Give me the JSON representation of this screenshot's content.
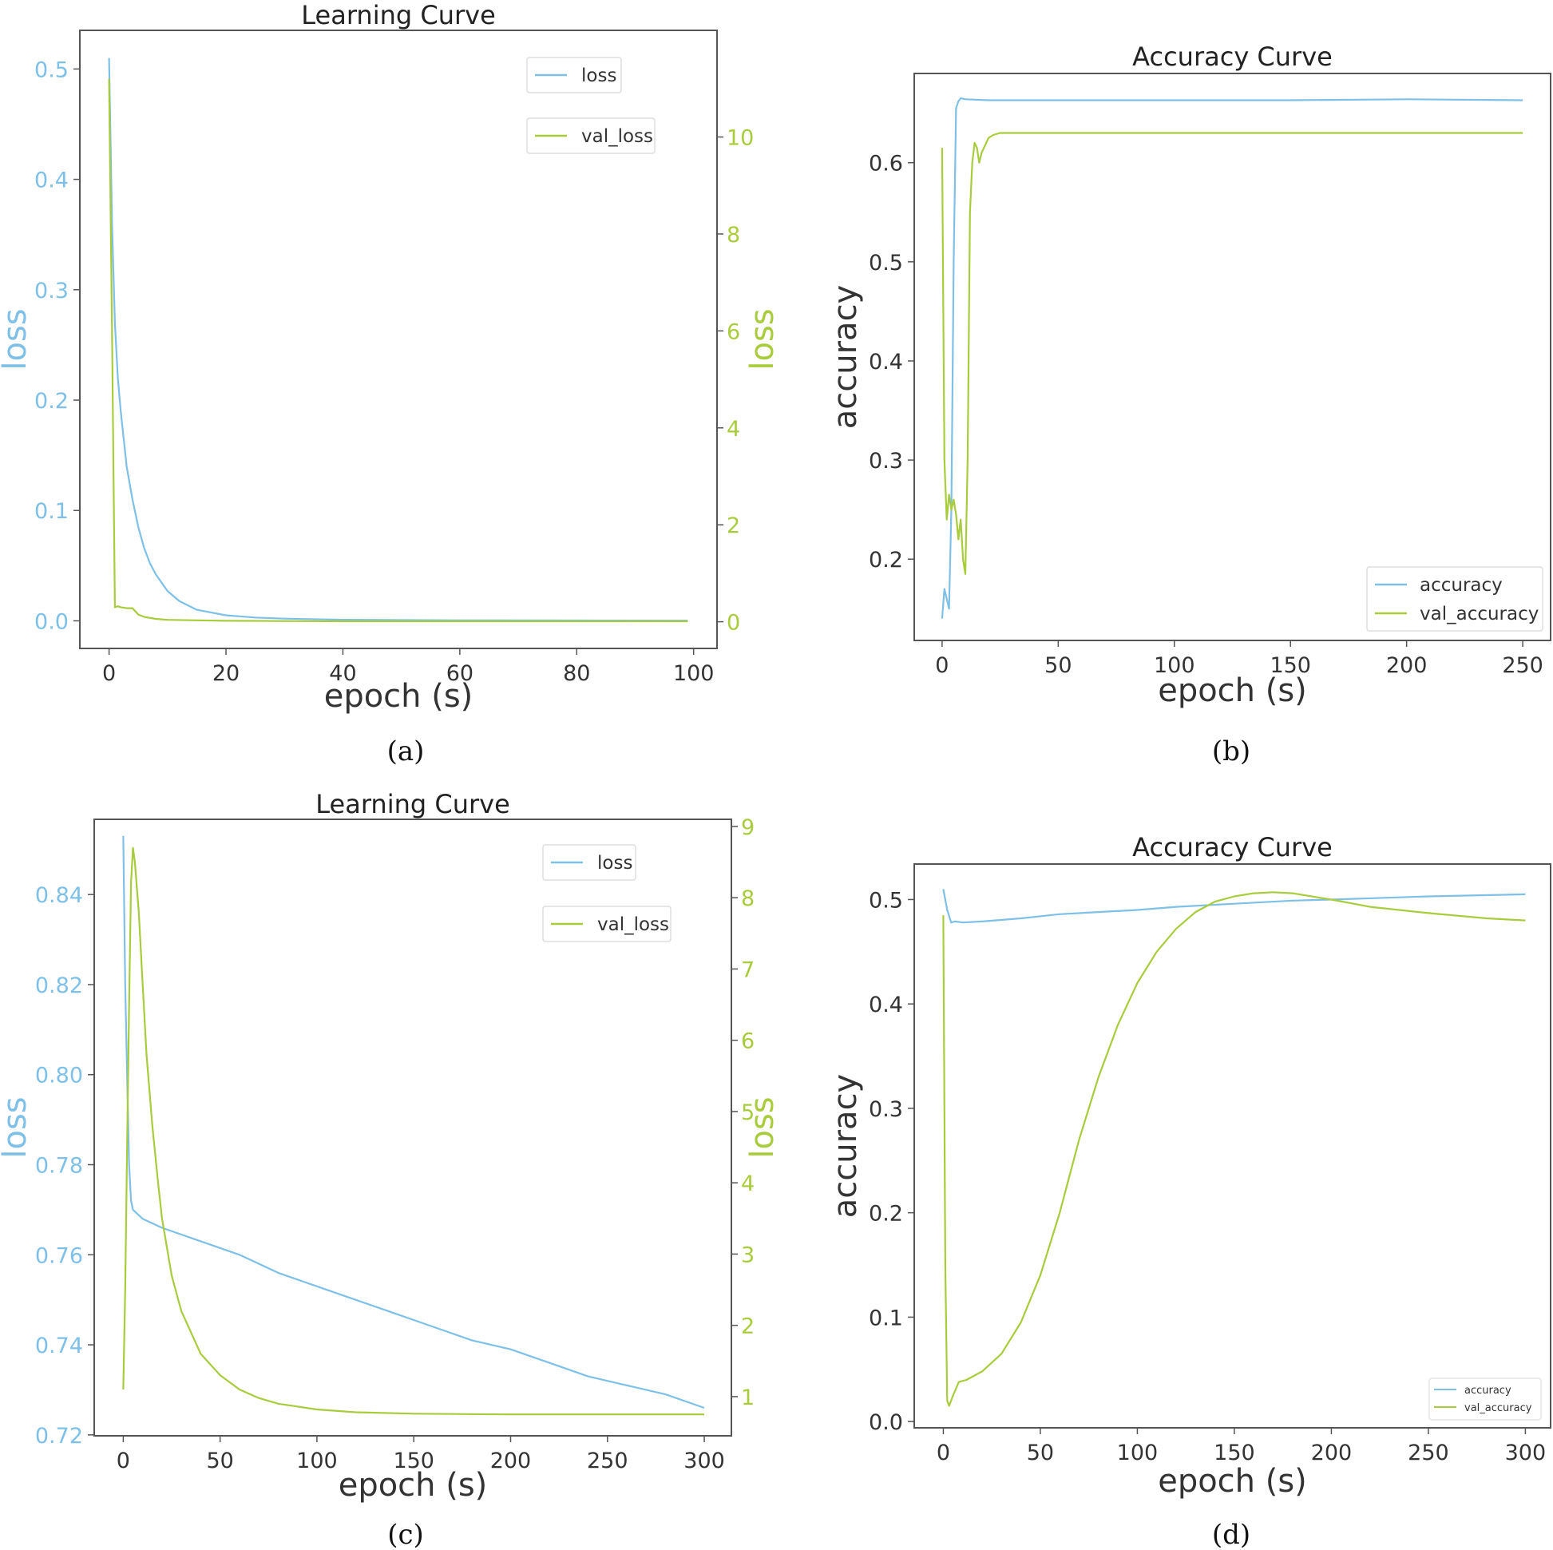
{
  "colors": {
    "blue": "#7ec0e8",
    "green": "#a8cc3c",
    "axis": "#555555",
    "text": "#333333"
  },
  "chart_data": [
    {
      "id": "a",
      "type": "line",
      "caption": "(a)",
      "title": "Learning Curve",
      "xlabel": "epoch (s)",
      "ylabel_left": "loss",
      "ylabel_right": "loss",
      "xlim": [
        -5,
        104
      ],
      "ylim_left": [
        -0.025,
        0.535
      ],
      "ylim_right": [
        -0.55,
        12.2
      ],
      "xticks": [
        0,
        20,
        40,
        60,
        80,
        100
      ],
      "yticks_left": [
        0.0,
        0.1,
        0.2,
        0.3,
        0.4,
        0.5
      ],
      "yticks_right": [
        0,
        2,
        4,
        6,
        8,
        10
      ],
      "legend": "top-right-stacked",
      "series": [
        {
          "name": "loss",
          "axis": "left",
          "color": "blue",
          "x": [
            0,
            0.5,
            1,
            1.5,
            2,
            3,
            4,
            5,
            6,
            7,
            8,
            10,
            12,
            15,
            20,
            25,
            30,
            40,
            60,
            80,
            99
          ],
          "y": [
            0.51,
            0.36,
            0.27,
            0.22,
            0.19,
            0.14,
            0.11,
            0.085,
            0.066,
            0.052,
            0.042,
            0.027,
            0.018,
            0.01,
            0.005,
            0.003,
            0.002,
            0.001,
            0.0005,
            0.0003,
            0.0002
          ]
        },
        {
          "name": "val_loss",
          "axis": "right",
          "color": "green",
          "x": [
            0,
            0.5,
            1,
            1.5,
            2,
            3,
            4,
            5,
            6,
            8,
            10,
            15,
            20,
            40,
            60,
            80,
            99
          ],
          "y": [
            11.2,
            6.0,
            0.3,
            0.32,
            0.3,
            0.28,
            0.28,
            0.15,
            0.1,
            0.06,
            0.04,
            0.03,
            0.02,
            0.01,
            0.01,
            0.01,
            0.01
          ]
        }
      ]
    },
    {
      "id": "b",
      "type": "line",
      "caption": "(b)",
      "title": "Accuracy Curve",
      "xlabel": "epoch (s)",
      "ylabel_left": "accuracy",
      "xlim": [
        -12,
        262
      ],
      "ylim_left": [
        0.118,
        0.69
      ],
      "xticks": [
        0,
        50,
        100,
        150,
        200,
        250
      ],
      "yticks_left": [
        0.2,
        0.3,
        0.4,
        0.5,
        0.6
      ],
      "legend": "lower-right",
      "series": [
        {
          "name": "accuracy",
          "axis": "left",
          "color": "blue",
          "x": [
            0,
            1,
            2,
            3,
            4,
            5,
            6,
            7,
            8,
            10,
            20,
            50,
            100,
            150,
            200,
            250
          ],
          "y": [
            0.14,
            0.17,
            0.16,
            0.15,
            0.25,
            0.5,
            0.655,
            0.662,
            0.665,
            0.664,
            0.663,
            0.663,
            0.663,
            0.663,
            0.664,
            0.663
          ]
        },
        {
          "name": "val_accuracy",
          "axis": "left",
          "color": "green",
          "x": [
            0,
            1,
            2,
            3,
            4,
            5,
            6,
            7,
            8,
            9,
            10,
            11,
            12,
            13,
            14,
            15,
            16,
            17,
            18,
            20,
            22,
            25,
            30,
            50,
            100,
            150,
            200,
            250
          ],
          "y": [
            0.615,
            0.3,
            0.24,
            0.265,
            0.25,
            0.26,
            0.245,
            0.22,
            0.24,
            0.2,
            0.185,
            0.3,
            0.55,
            0.6,
            0.62,
            0.615,
            0.6,
            0.61,
            0.615,
            0.625,
            0.628,
            0.63,
            0.63,
            0.63,
            0.63,
            0.63,
            0.63,
            0.63
          ]
        }
      ]
    },
    {
      "id": "c",
      "type": "line",
      "caption": "(c)",
      "title": "Learning Curve",
      "xlabel": "epoch (s)",
      "ylabel_left": "loss",
      "ylabel_right": "loss",
      "xlim": [
        -15,
        314
      ],
      "ylim_left": [
        0.7198,
        0.8567
      ],
      "ylim_right": [
        0.45,
        9.1
      ],
      "xticks": [
        0,
        50,
        100,
        150,
        200,
        250,
        300
      ],
      "yticks_left": [
        0.72,
        0.74,
        0.76,
        0.78,
        0.8,
        0.82,
        0.84
      ],
      "yticks_right": [
        1,
        2,
        3,
        4,
        5,
        6,
        7,
        8,
        9
      ],
      "legend": "top-right-stacked",
      "series": [
        {
          "name": "loss",
          "axis": "left",
          "color": "blue",
          "x": [
            0,
            1,
            2,
            3,
            4,
            5,
            10,
            20,
            40,
            60,
            80,
            100,
            120,
            140,
            160,
            180,
            200,
            220,
            240,
            260,
            280,
            300
          ],
          "y": [
            0.853,
            0.82,
            0.8,
            0.78,
            0.772,
            0.77,
            0.768,
            0.766,
            0.763,
            0.76,
            0.756,
            0.753,
            0.75,
            0.747,
            0.744,
            0.741,
            0.739,
            0.736,
            0.733,
            0.731,
            0.729,
            0.726
          ]
        },
        {
          "name": "val_loss",
          "axis": "right",
          "color": "green",
          "x": [
            0,
            1,
            2,
            3,
            4,
            5,
            6,
            8,
            10,
            12,
            15,
            18,
            20,
            25,
            30,
            40,
            50,
            60,
            70,
            80,
            100,
            120,
            150,
            200,
            250,
            300
          ],
          "y": [
            1.1,
            2.5,
            4.5,
            6.5,
            8.2,
            8.7,
            8.5,
            7.8,
            6.8,
            5.8,
            4.8,
            4.0,
            3.5,
            2.7,
            2.2,
            1.6,
            1.3,
            1.1,
            0.98,
            0.9,
            0.82,
            0.78,
            0.76,
            0.75,
            0.75,
            0.75
          ]
        }
      ]
    },
    {
      "id": "d",
      "type": "line",
      "caption": "(d)",
      "title": "Accuracy Curve",
      "xlabel": "epoch (s)",
      "ylabel_left": "accuracy",
      "xlim": [
        -15,
        313
      ],
      "ylim_left": [
        -0.006,
        0.534
      ],
      "xticks": [
        0,
        50,
        100,
        150,
        200,
        250,
        300
      ],
      "yticks_left": [
        0.0,
        0.1,
        0.2,
        0.3,
        0.4,
        0.5
      ],
      "legend": "lower-right-small",
      "series": [
        {
          "name": "accuracy",
          "axis": "left",
          "color": "blue",
          "x": [
            0,
            2,
            4,
            6,
            10,
            20,
            40,
            60,
            80,
            100,
            120,
            150,
            180,
            200,
            250,
            300
          ],
          "y": [
            0.51,
            0.49,
            0.478,
            0.479,
            0.478,
            0.479,
            0.482,
            0.486,
            0.488,
            0.49,
            0.493,
            0.496,
            0.499,
            0.5,
            0.503,
            0.505
          ]
        },
        {
          "name": "val_accuracy",
          "axis": "left",
          "color": "green",
          "x": [
            0,
            1,
            2,
            3,
            5,
            8,
            12,
            20,
            30,
            40,
            50,
            60,
            70,
            80,
            90,
            100,
            110,
            120,
            130,
            140,
            150,
            160,
            170,
            180,
            200,
            220,
            250,
            280,
            300
          ],
          "y": [
            0.485,
            0.15,
            0.02,
            0.015,
            0.025,
            0.038,
            0.04,
            0.048,
            0.065,
            0.095,
            0.14,
            0.2,
            0.27,
            0.33,
            0.38,
            0.42,
            0.45,
            0.472,
            0.488,
            0.498,
            0.503,
            0.506,
            0.507,
            0.506,
            0.5,
            0.493,
            0.487,
            0.482,
            0.48
          ]
        }
      ]
    }
  ]
}
